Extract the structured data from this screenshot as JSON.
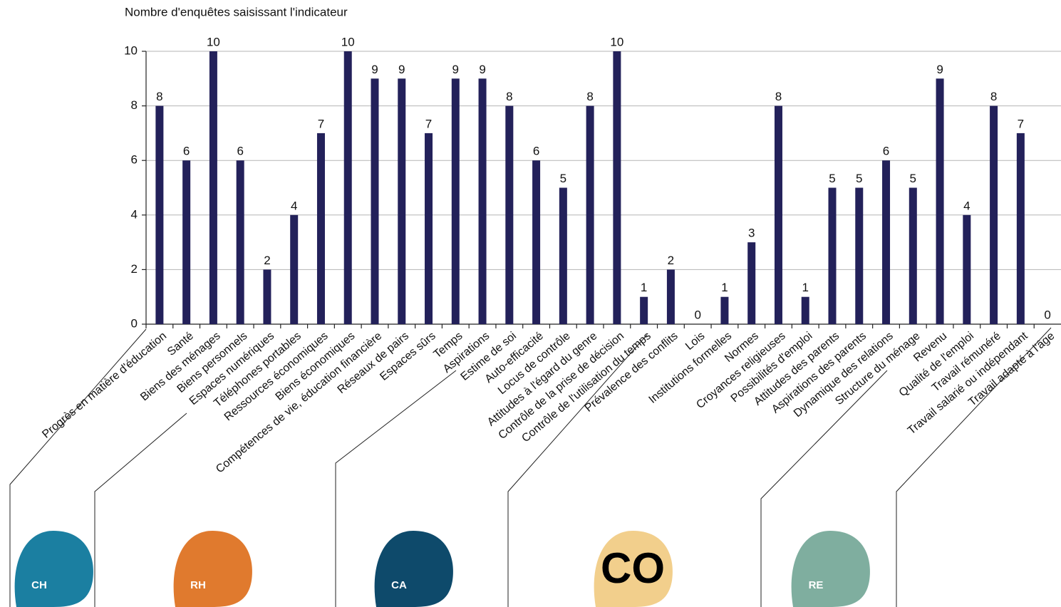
{
  "chart_data": {
    "type": "bar",
    "y_axis_label": "Nombre d'enquêtes saisissant l'indicateur",
    "categories": [
      "Progrès en matière d'éducation",
      "Santé",
      "Biens des ménages",
      "Biens personnels",
      "Espaces numériques",
      "Téléphones portables",
      "Ressources économiques",
      "Biens économiques",
      "Compétences de vie, éducation financière",
      "Réseaux de pairs",
      "Espaces sûrs",
      "Temps",
      "Aspirations",
      "Estime de soi",
      "Auto-efficacité",
      "Locus de contrôle",
      "Attitudes à l'égard du genre",
      "Contrôle de la prise de décision",
      "Contrôle de l'utilisation du temps",
      "Prévalence des conflits",
      "Lois",
      "Institutions formelles",
      "Normes",
      "Croyances religieuses",
      "Possibilités d'emploi",
      "Attitudes des parents",
      "Aspirations des parents",
      "Dynamique des relations",
      "Structure du ménage",
      "Revenu",
      "Qualité de l'emploi",
      "Travail rémunéré",
      "Travail salarié ou indépendant",
      "Travail adapté à l'âge"
    ],
    "values": [
      8,
      6,
      10,
      6,
      2,
      4,
      7,
      10,
      9,
      9,
      7,
      9,
      9,
      8,
      6,
      5,
      8,
      10,
      1,
      2,
      0,
      1,
      3,
      8,
      1,
      5,
      5,
      6,
      5,
      9,
      4,
      8,
      7,
      0
    ],
    "color": "#23215a",
    "ylim": [
      0,
      10
    ],
    "yticks": [
      0,
      2,
      4,
      6,
      8,
      10
    ],
    "grid": true,
    "groups": [
      {
        "label": "CH",
        "color": "#1b7fa1"
      },
      {
        "label": "RH",
        "color": "#e07a2e"
      },
      {
        "label": "CA",
        "color": "#0e4a6b"
      },
      {
        "label": "CO",
        "color": "#f2cf8c"
      },
      {
        "label": "RE",
        "color": "#7fae9f"
      }
    ]
  }
}
